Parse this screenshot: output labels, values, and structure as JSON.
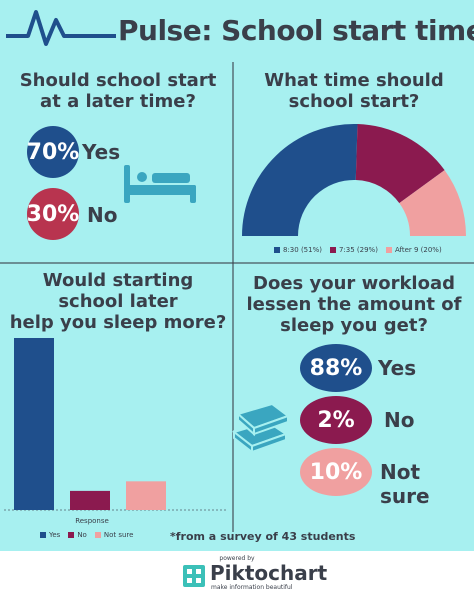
{
  "title": "Pulse: School start time",
  "q1": {
    "question_line1": "Should  school start",
    "question_line2": "at a later time?",
    "yes_pct": "70%",
    "yes_label": "Yes",
    "no_pct": "30%",
    "no_label": "No"
  },
  "q4": {
    "question_line1": "Does your workload",
    "question_line2": "lessen the amount of",
    "question_line3": "sleep you get?",
    "yes_pct": "88%",
    "yes_label": "Yes",
    "no_pct": "2%",
    "no_label": "No",
    "ns_pct": "10%",
    "ns_label": "Not sure"
  },
  "colors": {
    "background": "#a7f0f0",
    "navy": "#1f4f8c",
    "maroon": "#8b1a4f",
    "crimson": "#b8344f",
    "pink": "#f0a0a0",
    "text": "#3a3f4a",
    "teal": "#3aa6c0"
  },
  "icons": [
    "pulse-icon",
    "bed-icon",
    "books-icon",
    "piktochart-logo-icon"
  ],
  "footnote": "*from a survey of 43 students",
  "footer": {
    "powered_by": "powered by",
    "brand": "Piktochart",
    "tagline": "make information beautiful"
  },
  "chart_data": [
    {
      "type": "pie",
      "title": "What time should school start?",
      "title_line1": "What time should",
      "title_line2": "school start?",
      "labels": [
        "8:30",
        "7:35",
        "After 9"
      ],
      "values": [
        51,
        29,
        20
      ],
      "legend_labels": [
        "8:30 (51%)",
        "7:35 (29%)",
        "After 9 (20%)"
      ],
      "colors": [
        "#1f4f8c",
        "#8b1a4f",
        "#f0a0a0"
      ],
      "legend": "bottom"
    },
    {
      "type": "bar",
      "title": "Would starting school later help you sleep more?",
      "title_line1": "Would starting",
      "title_line2": "school later",
      "title_line3": "help you sleep more?",
      "categories": [
        "Yes",
        "No",
        "Not sure"
      ],
      "values": [
        36,
        4,
        6
      ],
      "colors": [
        "#1f4f8c",
        "#8b1a4f",
        "#f0a0a0"
      ],
      "xlabel": "Response",
      "ylim": [
        0,
        36
      ],
      "legend": "bottom"
    }
  ]
}
